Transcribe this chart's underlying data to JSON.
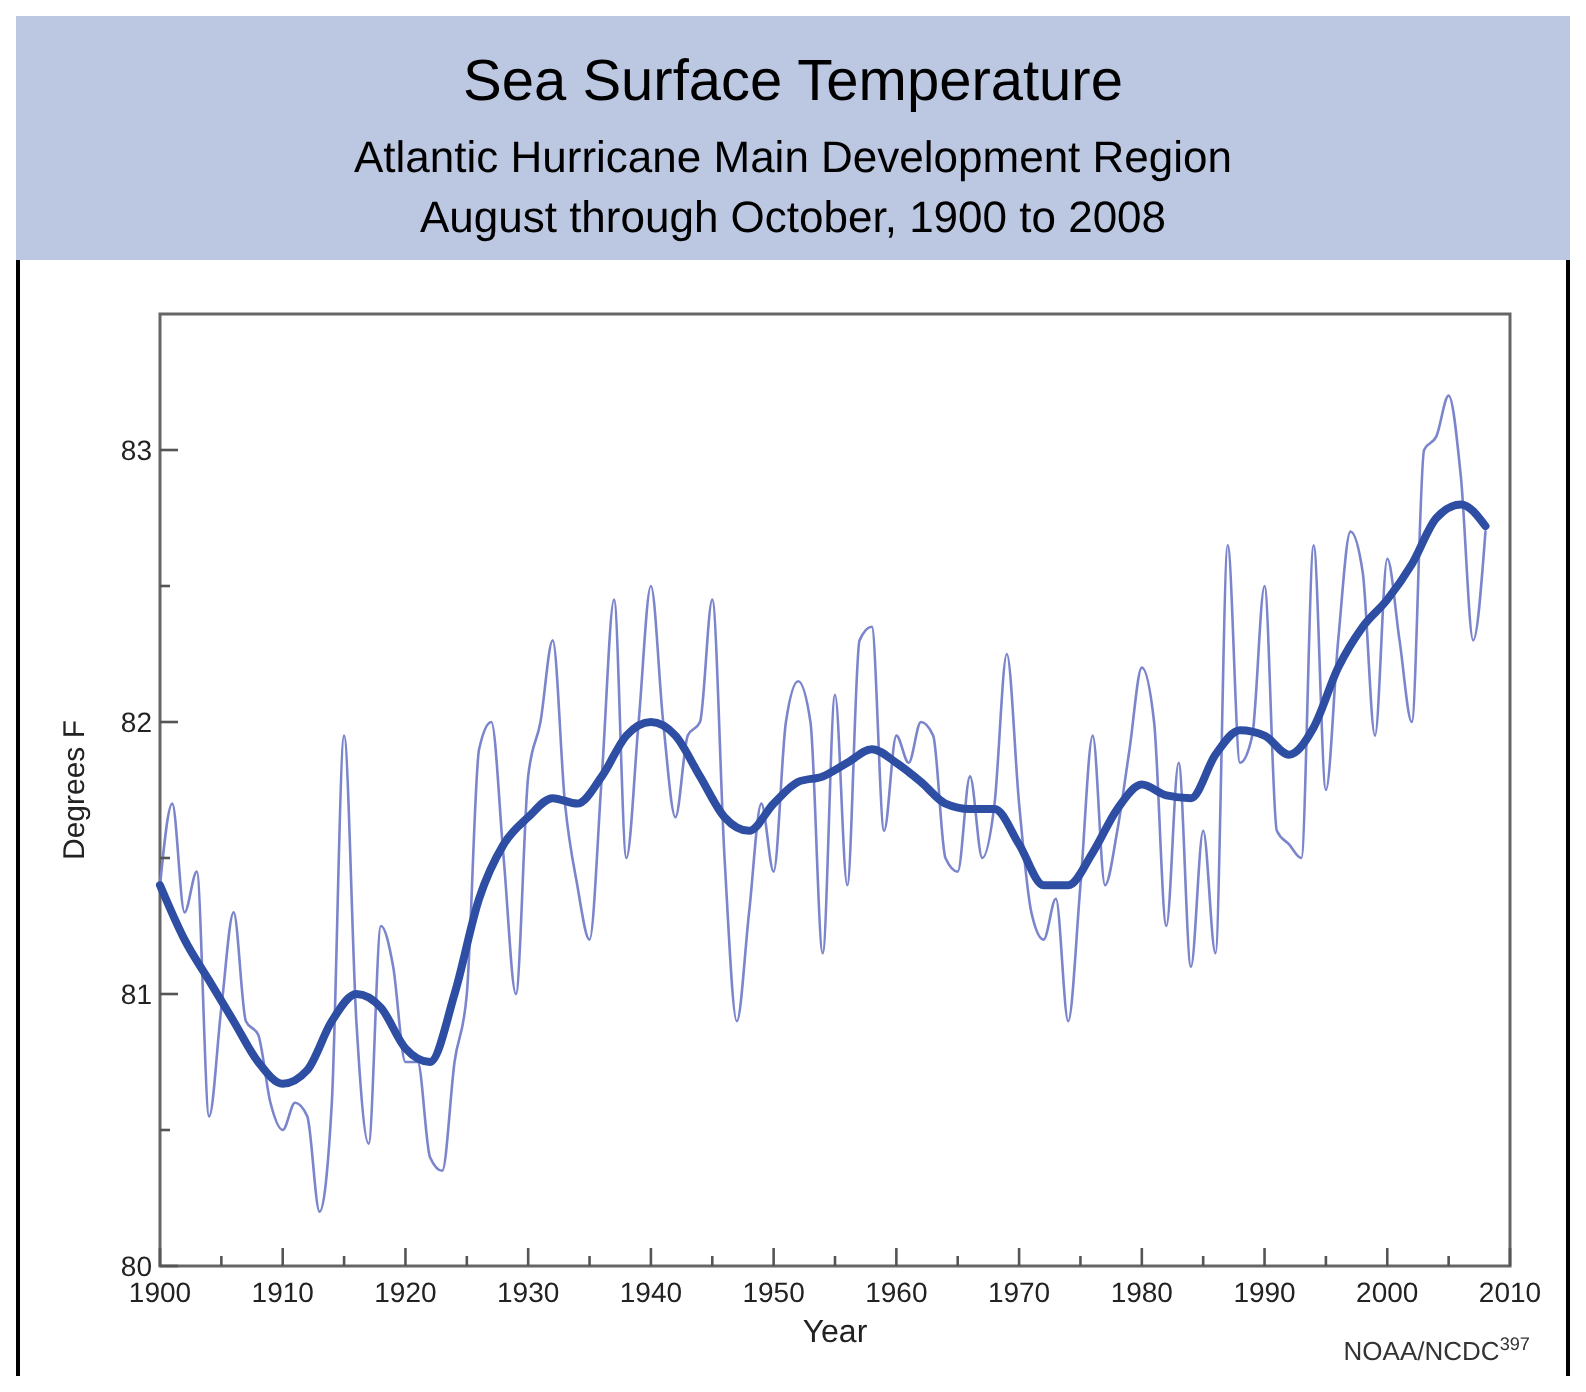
{
  "chart_data": {
    "type": "line",
    "title": "Sea Surface Temperature",
    "subtitle": "Atlantic Hurricane Main Development Region\nAugust through October, 1900 to 2008",
    "xlabel": "Year",
    "ylabel": "Degrees F",
    "annotations": [
      "NOAA/NCDC$^{397}$"
    ],
    "xlim": [
      1900,
      2010
    ],
    "xticks": [
      1900,
      {
        "value": 1905,
        "label": null
      },
      1910,
      {
        "value": 1915,
        "label": null
      },
      1920,
      {
        "value": 1925,
        "label": null
      },
      1930,
      {
        "value": 1935,
        "label": null
      },
      1940,
      {
        "value": 1945,
        "label": null
      },
      1950,
      {
        "value": 1955,
        "label": null
      },
      1960,
      {
        "value": 1965,
        "label": null
      },
      1970,
      {
        "value": 1975,
        "label": null
      },
      1980,
      {
        "value": 1985,
        "label": null
      },
      1990,
      {
        "value": 1995,
        "label": null
      },
      2000,
      {
        "value": 2005,
        "label": null
      },
      2010
    ],
    "ylim": [
      80,
      83.5
    ],
    "yticks": [
      80,
      {
        "value": 80.5,
        "label": null
      },
      81,
      {
        "value": 81.5,
        "label": null
      },
      82,
      {
        "value": 82.5,
        "label": null
      },
      83
    ],
    "grid": false,
    "marker": "none",
    "line_style": "solid",
    "series": [
      {
        "color": "#7b85cc",
        "x": [
          1900,
          1901,
          1902,
          1903,
          1904,
          1905,
          1906,
          1907,
          1908,
          1909,
          1910,
          1911,
          1912,
          1913,
          1914,
          1915,
          1916,
          1917,
          1918,
          1919,
          1920,
          1921,
          1922,
          1923,
          1924,
          1925,
          1926,
          1927,
          1928,
          1929,
          1930,
          1931,
          1932,
          1933,
          1934,
          1935,
          1936,
          1937,
          1938,
          1939,
          1940,
          1941,
          1942,
          1943,
          1944,
          1945,
          1946,
          1947,
          1948,
          1949,
          1950,
          1951,
          1952,
          1953,
          1954,
          1955,
          1956,
          1957,
          1958,
          1959,
          1960,
          1961,
          1962,
          1963,
          1964,
          1965,
          1966,
          1967,
          1968,
          1969,
          1970,
          1971,
          1972,
          1973,
          1974,
          1975,
          1976,
          1977,
          1978,
          1979,
          1980,
          1981,
          1982,
          1983,
          1984,
          1985,
          1986,
          1987,
          1988,
          1989,
          1990,
          1991,
          1992,
          1993,
          1994,
          1995,
          1996,
          1997,
          1998,
          1999,
          2000,
          2001,
          2002,
          2003,
          2004,
          2005,
          2006,
          2007,
          2008
        ],
        "values": [
          81.4,
          81.7,
          81.3,
          81.45,
          80.55,
          80.95,
          81.3,
          80.9,
          80.85,
          80.6,
          80.5,
          80.6,
          80.55,
          80.2,
          80.6,
          81.95,
          80.9,
          80.45,
          81.25,
          81.1,
          80.75,
          80.75,
          80.4,
          80.35,
          80.75,
          81.0,
          81.9,
          82.0,
          81.5,
          81.0,
          81.8,
          82.0,
          82.3,
          81.7,
          81.4,
          81.2,
          81.8,
          82.45,
          81.5,
          82.0,
          82.5,
          82.0,
          81.65,
          81.95,
          82.0,
          82.45,
          81.5,
          80.9,
          81.3,
          81.7,
          81.45,
          82.0,
          82.15,
          82.0,
          81.15,
          82.1,
          81.4,
          82.3,
          82.35,
          81.6,
          81.95,
          81.85,
          82.0,
          81.95,
          81.5,
          81.45,
          81.8,
          81.5,
          81.7,
          82.25,
          81.7,
          81.3,
          81.2,
          81.35,
          80.9,
          81.4,
          81.95,
          81.4,
          81.6,
          81.9,
          82.2,
          82.0,
          81.25,
          81.85,
          81.1,
          81.6,
          81.15,
          82.65,
          81.85,
          81.95,
          82.5,
          81.6,
          81.55,
          81.5,
          82.65,
          81.75,
          82.3,
          82.7,
          82.55,
          81.95,
          82.6,
          82.3,
          82.0,
          83.0,
          83.05,
          83.2,
          82.9,
          82.3,
          82.7
        ]
      },
      {
        "color": "#2e4ea3",
        "x": [
          1900,
          1902,
          1904,
          1906,
          1908,
          1910,
          1912,
          1914,
          1916,
          1918,
          1920,
          1922,
          1924,
          1926,
          1928,
          1930,
          1932,
          1934,
          1936,
          1938,
          1940,
          1942,
          1944,
          1946,
          1948,
          1950,
          1952,
          1954,
          1956,
          1958,
          1960,
          1962,
          1964,
          1966,
          1968,
          1970,
          1972,
          1974,
          1976,
          1978,
          1980,
          1982,
          1984,
          1986,
          1988,
          1990,
          1992,
          1994,
          1996,
          1998,
          2000,
          2002,
          2004,
          2006,
          2008
        ],
        "values": [
          81.4,
          81.2,
          81.05,
          80.9,
          80.75,
          80.67,
          80.72,
          80.9,
          81.0,
          80.95,
          80.8,
          80.75,
          81.0,
          81.35,
          81.55,
          81.65,
          81.72,
          81.7,
          81.8,
          81.95,
          82.0,
          81.95,
          81.8,
          81.65,
          81.6,
          81.7,
          81.78,
          81.8,
          81.85,
          81.9,
          81.85,
          81.78,
          81.7,
          81.68,
          81.68,
          81.55,
          81.4,
          81.4,
          81.52,
          81.68,
          81.77,
          81.73,
          81.72,
          81.88,
          81.97,
          81.95,
          81.88,
          81.98,
          82.2,
          82.35,
          82.45,
          82.58,
          82.75,
          82.8,
          82.72
        ]
      }
    ]
  }
}
